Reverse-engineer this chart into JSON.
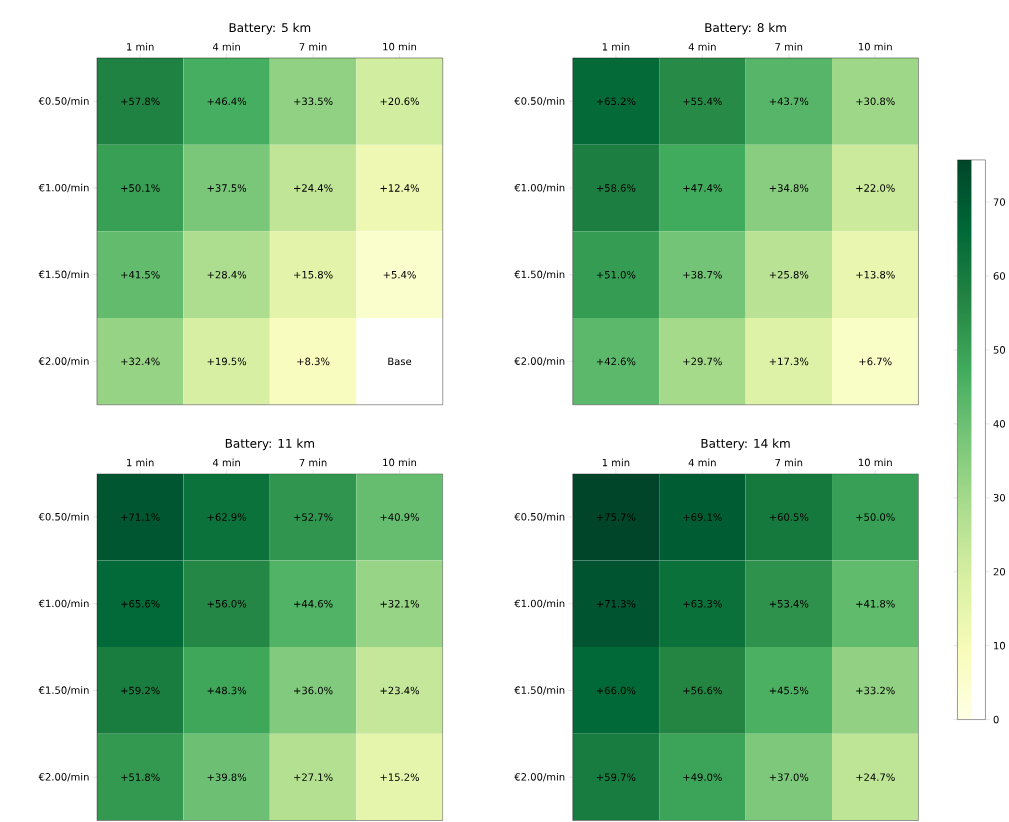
{
  "chart_data": [
    {
      "type": "heatmap",
      "title": "Battery: 5 km",
      "categories": [
        "1 min",
        "4 min",
        "7 min",
        "10 min"
      ],
      "y_categories": [
        "€0.50/min",
        "€1.00/min",
        "€1.50/min",
        "€2.00/min"
      ],
      "cells": [
        [
          57.8,
          46.4,
          33.5,
          20.6
        ],
        [
          50.1,
          37.5,
          24.4,
          12.4
        ],
        [
          41.5,
          28.4,
          15.8,
          5.4
        ],
        [
          32.4,
          19.5,
          8.3,
          null
        ]
      ],
      "cell_labels": [
        [
          "+57.8%",
          "+46.4%",
          "+33.5%",
          "+20.6%"
        ],
        [
          "+50.1%",
          "+37.5%",
          "+24.4%",
          "+12.4%"
        ],
        [
          "+41.5%",
          "+28.4%",
          "+15.8%",
          "+5.4%"
        ],
        [
          "+32.4%",
          "+19.5%",
          "+8.3%",
          "Base"
        ]
      ]
    },
    {
      "type": "heatmap",
      "title": "Battery: 8 km",
      "categories": [
        "1 min",
        "4 min",
        "7 min",
        "10 min"
      ],
      "y_categories": [
        "€0.50/min",
        "€1.00/min",
        "€1.50/min",
        "€2.00/min"
      ],
      "cells": [
        [
          65.2,
          55.4,
          43.7,
          30.8
        ],
        [
          58.6,
          47.4,
          34.8,
          22.0
        ],
        [
          51.0,
          38.7,
          25.8,
          13.8
        ],
        [
          42.6,
          29.7,
          17.3,
          6.7
        ]
      ],
      "cell_labels": [
        [
          "+65.2%",
          "+55.4%",
          "+43.7%",
          "+30.8%"
        ],
        [
          "+58.6%",
          "+47.4%",
          "+34.8%",
          "+22.0%"
        ],
        [
          "+51.0%",
          "+38.7%",
          "+25.8%",
          "+13.8%"
        ],
        [
          "+42.6%",
          "+29.7%",
          "+17.3%",
          "+6.7%"
        ]
      ]
    },
    {
      "type": "heatmap",
      "title": "Battery: 11 km",
      "categories": [
        "1 min",
        "4 min",
        "7 min",
        "10 min"
      ],
      "y_categories": [
        "€0.50/min",
        "€1.00/min",
        "€1.50/min",
        "€2.00/min"
      ],
      "cells": [
        [
          71.1,
          62.9,
          52.7,
          40.9
        ],
        [
          65.6,
          56.0,
          44.6,
          32.1
        ],
        [
          59.2,
          48.3,
          36.0,
          23.4
        ],
        [
          51.8,
          39.8,
          27.1,
          15.2
        ]
      ],
      "cell_labels": [
        [
          "+71.1%",
          "+62.9%",
          "+52.7%",
          "+40.9%"
        ],
        [
          "+65.6%",
          "+56.0%",
          "+44.6%",
          "+32.1%"
        ],
        [
          "+59.2%",
          "+48.3%",
          "+36.0%",
          "+23.4%"
        ],
        [
          "+51.8%",
          "+39.8%",
          "+27.1%",
          "+15.2%"
        ]
      ]
    },
    {
      "type": "heatmap",
      "title": "Battery: 14 km",
      "categories": [
        "1 min",
        "4 min",
        "7 min",
        "10 min"
      ],
      "y_categories": [
        "€0.50/min",
        "€1.00/min",
        "€1.50/min",
        "€2.00/min"
      ],
      "cells": [
        [
          75.7,
          69.1,
          60.5,
          50.0
        ],
        [
          71.3,
          63.3,
          53.4,
          41.8
        ],
        [
          66.0,
          56.6,
          45.5,
          33.2
        ],
        [
          59.7,
          49.0,
          37.0,
          24.7
        ]
      ],
      "cell_labels": [
        [
          "+75.7%",
          "+69.1%",
          "+60.5%",
          "+50.0%"
        ],
        [
          "+71.3%",
          "+63.3%",
          "+53.4%",
          "+41.8%"
        ],
        [
          "+66.0%",
          "+56.6%",
          "+45.5%",
          "+33.2%"
        ],
        [
          "+59.7%",
          "+49.0%",
          "+37.0%",
          "+24.7%"
        ]
      ],
      "clim": [
        0,
        75.7
      ],
      "cticks": [
        0,
        10,
        20,
        30,
        40,
        50,
        60,
        70
      ]
    }
  ]
}
